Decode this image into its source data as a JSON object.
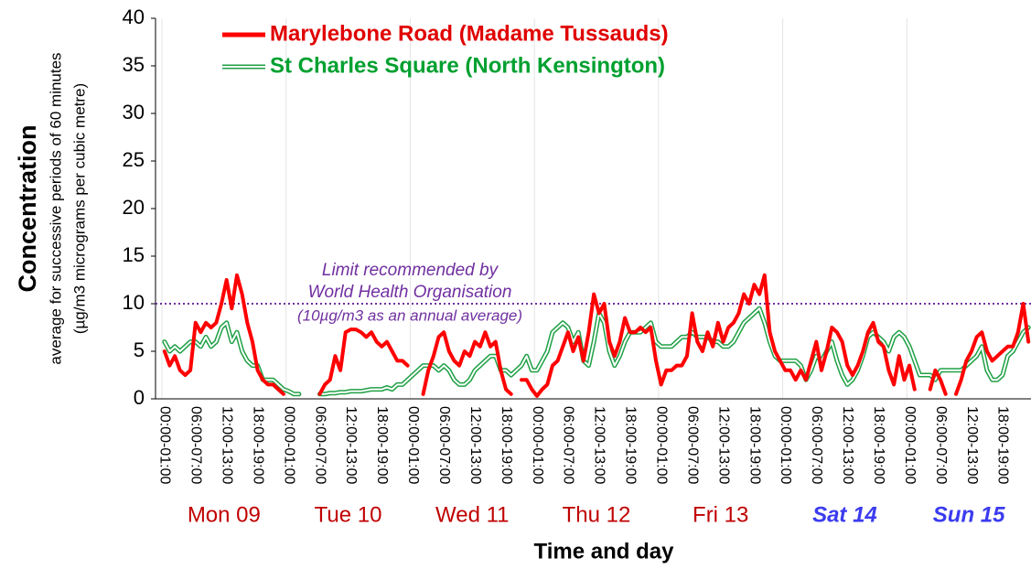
{
  "chart_data": {
    "type": "line",
    "y_title": "Concentration",
    "y_subtitle": [
      "average for successive periods of 60 minutes",
      "(µg/m3 micrograms per cubic metre)"
    ],
    "x_title": "Time and day",
    "ylim": [
      0,
      40
    ],
    "yticks": [
      0,
      5,
      10,
      15,
      20,
      25,
      30,
      35,
      40
    ],
    "day_labels": [
      {
        "label": "Mon 09",
        "color": "#c00000"
      },
      {
        "label": "Tue 10",
        "color": "#c00000"
      },
      {
        "label": "Wed 11",
        "color": "#c00000"
      },
      {
        "label": "Thu 12",
        "color": "#c00000"
      },
      {
        "label": "Fri 13",
        "color": "#c00000"
      },
      {
        "label": "Sat 14",
        "color": "#3b3bf0"
      },
      {
        "label": "Sun 15",
        "color": "#3b3bf0"
      }
    ],
    "reference_line": {
      "value": 10,
      "color": "#7030a0",
      "label": [
        "Limit recommended by",
        "World Health Organisation",
        "(10µg/m3 as an annual average)"
      ]
    },
    "categories": [
      "00:00-01:00",
      null,
      null,
      null,
      null,
      null,
      "06:00-07:00",
      null,
      null,
      null,
      null,
      null,
      "12:00-13:00",
      null,
      null,
      null,
      null,
      null,
      "18:00-19:00",
      null,
      null,
      null,
      null,
      null,
      "00:00-01:00",
      null,
      null,
      null,
      null,
      null,
      "06:00-07:00",
      null,
      null,
      null,
      null,
      null,
      "12:00-13:00",
      null,
      null,
      null,
      null,
      null,
      "18:00-19:00",
      null,
      null,
      null,
      null,
      null,
      "00:00-01:00",
      null,
      null,
      null,
      null,
      null,
      "06:00-07:00",
      null,
      null,
      null,
      null,
      null,
      "12:00-13:00",
      null,
      null,
      null,
      null,
      null,
      "18:00-19:00",
      null,
      null,
      null,
      null,
      null,
      "00:00-01:00",
      null,
      null,
      null,
      null,
      null,
      "06:00-07:00",
      null,
      null,
      null,
      null,
      null,
      "12:00-13:00",
      null,
      null,
      null,
      null,
      null,
      "18:00-19:00",
      null,
      null,
      null,
      null,
      null,
      "00:00-01:00",
      null,
      null,
      null,
      null,
      null,
      "06:00-07:00",
      null,
      null,
      null,
      null,
      null,
      "12:00-13:00",
      null,
      null,
      null,
      null,
      null,
      "18:00-19:00",
      null,
      null,
      null,
      null,
      null,
      "00:00-01:00",
      null,
      null,
      null,
      null,
      null,
      "06:00-07:00",
      null,
      null,
      null,
      null,
      null,
      "12:00-13:00",
      null,
      null,
      null,
      null,
      null,
      "18:00-19:00",
      null,
      null,
      null,
      null,
      null,
      "00:00-01:00",
      null,
      null,
      null,
      null,
      null,
      "06:00-07:00",
      null,
      null,
      null,
      null,
      null,
      "12:00-13:00",
      null,
      null,
      null,
      null,
      null,
      "18:00-19:00",
      null,
      null,
      null,
      null,
      null
    ],
    "series": [
      {
        "name": "Marylebone Road (Madame Tussauds)",
        "color": "#ff0000",
        "style": "solid",
        "values": [
          5,
          3.5,
          4.5,
          3,
          2.5,
          3,
          8,
          7,
          8,
          7.5,
          8,
          10,
          12.5,
          9.5,
          13,
          11,
          8,
          6,
          3,
          2,
          1.5,
          1.5,
          1,
          0.5,
          null,
          null,
          null,
          null,
          null,
          null,
          0.5,
          1.5,
          2,
          4.5,
          3,
          7,
          7.3,
          7.3,
          7,
          6.5,
          7,
          6,
          5.5,
          6,
          5,
          4,
          4,
          3.5,
          null,
          null,
          0.5,
          3,
          4.5,
          6.5,
          7,
          5,
          4,
          3.5,
          5,
          4.5,
          6,
          5.5,
          7,
          5.5,
          6,
          3,
          1,
          0.5,
          null,
          2,
          2,
          1,
          0.3,
          1,
          1.5,
          3.5,
          4,
          5.5,
          7,
          5,
          6.5,
          4,
          7,
          11,
          9,
          10,
          6,
          4.5,
          6,
          8.5,
          7,
          7,
          7.5,
          7,
          7.5,
          4,
          1.5,
          3,
          3,
          3.5,
          3.5,
          4.5,
          9,
          6,
          5,
          7,
          5.5,
          8,
          6,
          7.5,
          8,
          9,
          11,
          10,
          12,
          11,
          13,
          7,
          5,
          4,
          3,
          3,
          2,
          3,
          2,
          4,
          6,
          3,
          5,
          7.5,
          7,
          6,
          3.5,
          2.5,
          3.5,
          5,
          7,
          8,
          6,
          5.5,
          3,
          1.5,
          4.5,
          2,
          3.5,
          1,
          null,
          null,
          1,
          3,
          2,
          0.5,
          null,
          0.5,
          2,
          4,
          5,
          6.5,
          7,
          5,
          4,
          4.5,
          5,
          5.5,
          5.5,
          7,
          10,
          6
        ]
      },
      {
        "name": "St Charles Square (North Kensington)",
        "color": "#1fa045",
        "style": "double",
        "values": [
          6,
          5,
          5.5,
          5,
          5.5,
          6,
          6,
          5.5,
          6.5,
          5.5,
          6,
          7.5,
          8,
          6,
          7,
          5,
          4,
          3.5,
          3.5,
          2,
          2,
          2,
          1.5,
          1,
          0.8,
          0.5,
          0.5,
          null,
          null,
          null,
          0.5,
          0.5,
          0.6,
          0.6,
          0.7,
          0.7,
          0.8,
          0.8,
          0.8,
          0.9,
          1,
          1,
          1,
          1.2,
          1,
          1.5,
          1.5,
          2,
          2.5,
          3,
          3.5,
          3.5,
          3.5,
          3,
          3.5,
          3,
          2,
          1.5,
          1.5,
          2,
          3,
          3.5,
          4,
          4.5,
          4.5,
          3,
          3,
          2.5,
          3,
          3.5,
          4.5,
          3,
          3,
          4,
          5,
          7,
          7.5,
          8,
          7.5,
          6,
          7,
          4,
          3.5,
          6,
          9,
          8,
          5,
          3.5,
          4.5,
          6,
          7,
          7,
          7,
          7.5,
          8,
          6,
          5.5,
          5.5,
          5.5,
          6,
          6.5,
          6.5,
          7,
          6.5,
          6.5,
          6.5,
          6,
          6,
          5.5,
          5.5,
          6,
          7,
          8,
          8.5,
          9,
          9.5,
          8,
          6,
          4.5,
          4,
          4,
          4,
          4,
          3.5,
          2,
          3,
          4.5,
          4,
          5,
          6,
          4,
          2.5,
          1.5,
          2,
          3,
          4.5,
          6.5,
          7,
          6.5,
          6,
          5,
          6.5,
          7,
          6.5,
          5.5,
          4,
          2.5,
          2.5,
          2.5,
          2,
          3,
          3,
          3,
          3,
          3,
          3.5,
          4,
          4.5,
          5.5,
          3,
          2,
          2,
          2.5,
          4.5,
          5,
          6,
          7,
          7.5
        ]
      }
    ]
  }
}
